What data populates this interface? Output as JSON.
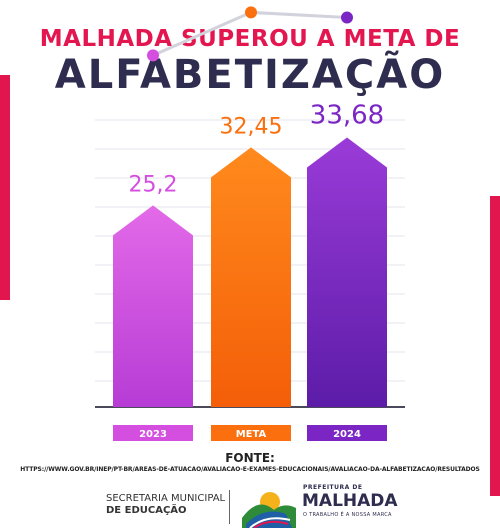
{
  "header": {
    "title_line1": "MALHADA SUPEROU A META DE",
    "title_line2": "ALFABETIZAÇÃO"
  },
  "colors": {
    "accent": "#e3164f",
    "title_dark": "#2e2d4f",
    "series": [
      "#d44ee0",
      "#fb6f0e",
      "#7b26c4"
    ]
  },
  "chart_data": {
    "type": "bar",
    "categories": [
      "2023",
      "META",
      "2024"
    ],
    "values": [
      25.2,
      32.45,
      33.68
    ],
    "value_labels": [
      "25,2",
      "32,45",
      "33,68"
    ],
    "ylim": [
      0,
      40
    ],
    "grid": true,
    "trend_line": true
  },
  "source": {
    "title": "FONTE:",
    "url": "HTTPS://WWW.GOV.BR/INEP/PT-BR/AREAS-DE-ATUACAO/AVALIACAO-E-EXAMES-EDUCACIONAIS/AVALIACAO-DA-ALFABETIZACAO/RESULTADOS"
  },
  "footer": {
    "secretaria_line1": "SECRETARIA MUNICIPAL",
    "secretaria_line2": "DE EDUCAÇÃO",
    "prefeitura_label": "PREFEITURA DE",
    "prefeitura_name": "MALHADA",
    "slogan": "O TRABALHO É A NOSSA MARCA"
  }
}
